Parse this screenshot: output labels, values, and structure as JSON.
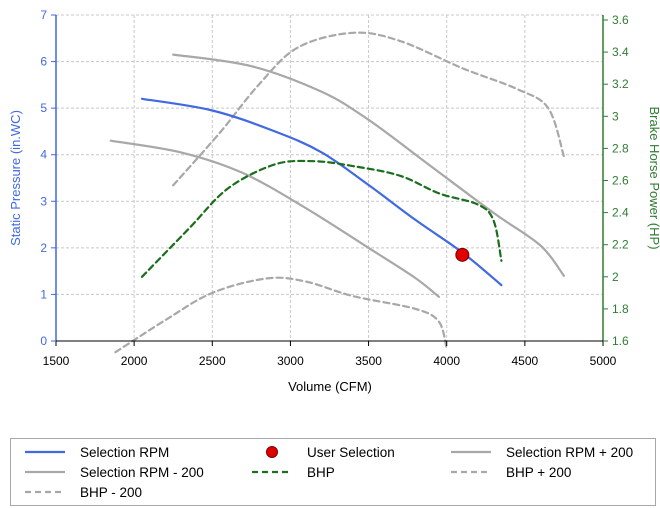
{
  "chart_data": {
    "type": "line",
    "xlabel": "Volume (CFM)",
    "ylabel": "Static Pressure (in.WC)",
    "y2label": "Brake Horse Power (HP)",
    "xlim": [
      1500,
      5000
    ],
    "ylim": [
      0,
      7
    ],
    "y2lim": [
      1.6,
      3.6
    ],
    "xticks": [
      "1500",
      "2000",
      "2500",
      "3000",
      "3500",
      "4000",
      "4500",
      "5000"
    ],
    "yticks": [
      "0",
      "1",
      "2",
      "3",
      "4",
      "5",
      "6",
      "7"
    ],
    "y2ticks": [
      "1.6",
      "1.8",
      "2",
      "2.2",
      "2.4",
      "2.6",
      "2.8",
      "3",
      "3.2",
      "3.4",
      "3.6"
    ],
    "grid": true,
    "legend_position": "bottom",
    "series": [
      {
        "name": "Selection RPM",
        "axis": "left",
        "color": "#4169E1",
        "style": "solid",
        "x": [
          2050,
          2500,
          2900,
          3200,
          3500,
          3800,
          4100,
          4350
        ],
        "y": [
          5.2,
          4.95,
          4.5,
          4.05,
          3.35,
          2.6,
          1.9,
          1.2
        ]
      },
      {
        "name": "User Selection",
        "axis": "left",
        "color": "#e00000",
        "marker": true,
        "x": [
          4100
        ],
        "y": [
          1.85
        ]
      },
      {
        "name": "Selection RPM + 200",
        "axis": "left",
        "color": "#a8a8a8",
        "style": "solid",
        "x": [
          2250,
          2750,
          3200,
          3500,
          3900,
          4300,
          4600,
          4750
        ],
        "y": [
          6.15,
          5.9,
          5.35,
          4.75,
          3.75,
          2.75,
          2.05,
          1.4
        ]
      },
      {
        "name": "BHP",
        "axis": "right",
        "color": "#1b6e1b",
        "style": "dashed",
        "x": [
          2050,
          2350,
          2600,
          2900,
          3150,
          3400,
          3700,
          3950,
          4200,
          4300,
          4350
        ],
        "y": [
          2.0,
          2.3,
          2.55,
          2.7,
          2.72,
          2.69,
          2.63,
          2.52,
          2.45,
          2.35,
          2.1
        ]
      },
      {
        "name": "BHP + 200",
        "axis": "right",
        "color": "#a8a8a8",
        "style": "dashed",
        "x": [
          2250,
          2550,
          2800,
          3050,
          3400,
          3700,
          4100,
          4450,
          4650,
          4750
        ],
        "y": [
          2.57,
          2.9,
          3.2,
          3.43,
          3.52,
          3.47,
          3.3,
          3.17,
          3.05,
          2.75
        ]
      },
      {
        "name": "Selection RPM - 200",
        "axis": "left",
        "color": "#a8a8a8",
        "style": "solid",
        "x": [
          1850,
          2300,
          2700,
          3100,
          3500,
          3800,
          3950
        ],
        "y": [
          4.3,
          4.05,
          3.6,
          2.85,
          2.0,
          1.35,
          0.95
        ]
      },
      {
        "name": "BHP - 200",
        "axis": "right",
        "color": "#a8a8a8",
        "style": "dashed",
        "x": [
          1880,
          2200,
          2500,
          2850,
          3100,
          3400,
          3800,
          3950,
          4000
        ],
        "y": [
          1.53,
          1.73,
          1.9,
          1.99,
          1.97,
          1.88,
          1.8,
          1.72,
          1.55
        ]
      }
    ],
    "legend": [
      {
        "label": "Selection RPM",
        "color": "#4169E1",
        "kind": "solid"
      },
      {
        "label": "User Selection",
        "color": "#e00000",
        "kind": "dot"
      },
      {
        "label": "Selection RPM + 200",
        "color": "#a8a8a8",
        "kind": "solid"
      },
      {
        "label": "Selection RPM - 200",
        "color": "#a8a8a8",
        "kind": "solid"
      },
      {
        "label": "BHP",
        "color": "#1b6e1b",
        "kind": "dashed"
      },
      {
        "label": "BHP + 200",
        "color": "#a8a8a8",
        "kind": "dashed"
      },
      {
        "label": "BHP - 200",
        "color": "#a8a8a8",
        "kind": "dashed"
      }
    ]
  }
}
